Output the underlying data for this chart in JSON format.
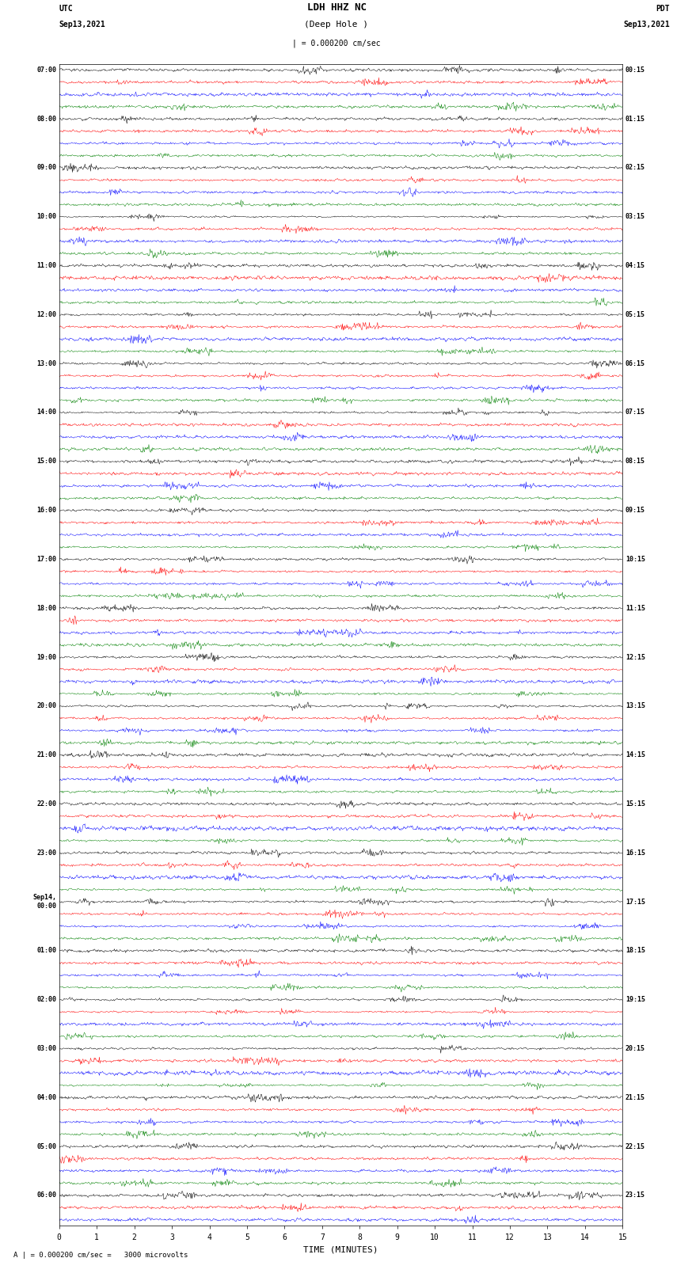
{
  "title_line1": "LDH HHZ NC",
  "title_line2": "(Deep Hole )",
  "scale_text": "| = 0.000200 cm/sec",
  "footer_text": "= 0.000200 cm/sec =   3000 microvolts",
  "utc_label": "UTC",
  "utc_date": "Sep13,2021",
  "pdt_label": "PDT",
  "pdt_date": "Sep13,2021",
  "xlabel": "TIME (MINUTES)",
  "bg_color": "#ffffff",
  "trace_colors": [
    "black",
    "red",
    "blue",
    "green"
  ],
  "noise_scales": [
    0.28,
    0.55,
    0.45,
    0.22
  ],
  "n_rows": 95,
  "n_cols": 900,
  "xmin": 0,
  "xmax": 15,
  "trace_amp": 0.38,
  "seed": 42,
  "left_labels": {
    "0": "07:00",
    "4": "08:00",
    "8": "09:00",
    "12": "10:00",
    "16": "11:00",
    "20": "12:00",
    "24": "13:00",
    "28": "14:00",
    "32": "15:00",
    "36": "16:00",
    "40": "17:00",
    "44": "18:00",
    "48": "19:00",
    "52": "20:00",
    "56": "21:00",
    "60": "22:00",
    "64": "23:00",
    "68": "Sep14,\n00:00",
    "72": "01:00",
    "76": "02:00",
    "80": "03:00",
    "84": "04:00",
    "88": "05:00",
    "92": "06:00"
  },
  "right_labels": {
    "0": "00:15",
    "4": "01:15",
    "8": "02:15",
    "12": "03:15",
    "16": "04:15",
    "20": "05:15",
    "24": "06:15",
    "28": "07:15",
    "32": "08:15",
    "36": "09:15",
    "40": "10:15",
    "44": "11:15",
    "48": "12:15",
    "52": "13:15",
    "56": "14:15",
    "60": "15:15",
    "64": "16:15",
    "68": "17:15",
    "72": "18:15",
    "76": "19:15",
    "80": "20:15",
    "84": "21:15",
    "88": "22:15",
    "92": "23:15"
  }
}
